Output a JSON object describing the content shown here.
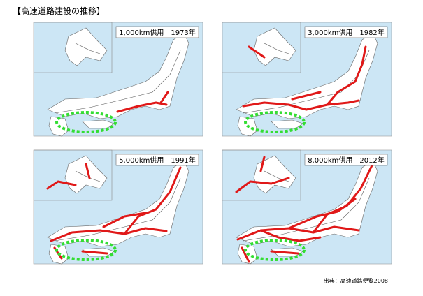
{
  "header": {
    "title": "【高速道路建設の推移】"
  },
  "panels": [
    {
      "label": "1,000km供用　1973年"
    },
    {
      "label": "3,000km供用　1982年"
    },
    {
      "label": "5,000km供用　1991年"
    },
    {
      "label": "8,000km供用　2012年"
    }
  ],
  "source": "出典：高速道路便覧2008"
}
